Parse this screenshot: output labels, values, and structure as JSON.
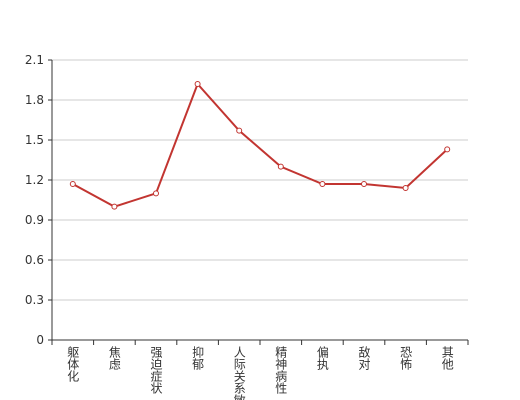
{
  "chart_data": {
    "type": "line",
    "categories": [
      "躯体化",
      "焦虑",
      "强迫症状",
      "抑郁",
      "人际关系敏感",
      "精神病性",
      "偏执",
      "敌对",
      "恐怖",
      "其他"
    ],
    "values": [
      1.17,
      1.0,
      1.1,
      1.92,
      1.57,
      1.3,
      1.17,
      1.17,
      1.14,
      1.43
    ],
    "color": "#c23531",
    "ylim": [
      0,
      2.1
    ],
    "yticks": [
      0,
      0.3,
      0.6,
      0.9,
      1.2,
      1.5,
      1.8,
      2.1
    ],
    "grid": true
  }
}
